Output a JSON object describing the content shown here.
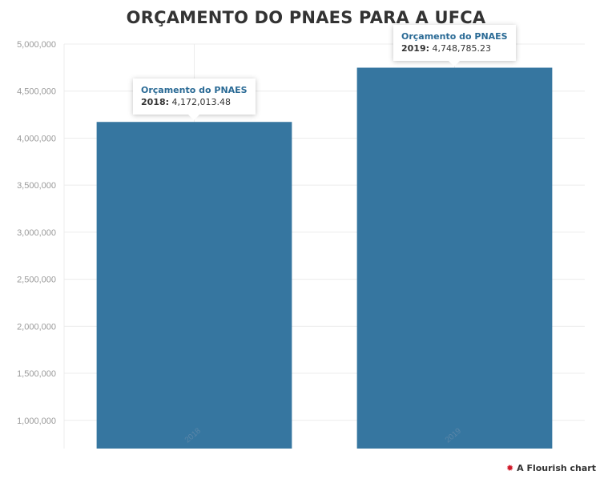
{
  "chart_data": {
    "type": "bar",
    "title": "ORÇAMENTO DO PNAES PARA A UFCA",
    "xlabel": "",
    "ylabel": "",
    "categories": [
      "2018",
      "2019"
    ],
    "series": [
      {
        "name": "Orçamento do PNAES",
        "values": [
          4172013.48,
          4748785.23
        ]
      }
    ],
    "value_labels": [
      "4,172,013.48",
      "4,748,785.23"
    ],
    "ylim": [
      700000,
      5000000
    ],
    "yticks": [
      1000000,
      1500000,
      2000000,
      2500000,
      3000000,
      3500000,
      4000000,
      4500000,
      5000000
    ],
    "ytick_labels": [
      "1,000,000",
      "1,500,000",
      "2,000,000",
      "2,500,000",
      "3,000,000",
      "3,500,000",
      "4,000,000",
      "4,500,000",
      "5,000,000"
    ],
    "grid": true,
    "legend": "none",
    "colors": {
      "bar": "#3676a0",
      "grid": "#ececec",
      "axis_text": "#9a9a9a"
    }
  },
  "credit": {
    "icon": "flourish-star-icon",
    "label": "A Flourish chart"
  }
}
